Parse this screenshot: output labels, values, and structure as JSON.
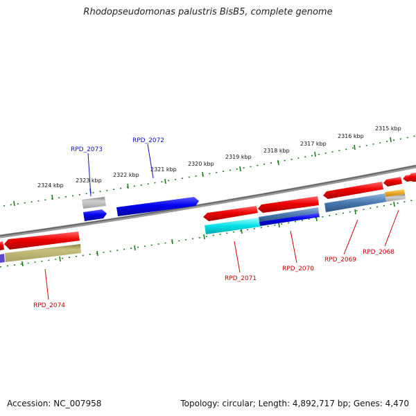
{
  "title": "Rhodopseudomonas palustris BisB5, complete genome",
  "accession_text": "Accession: NC_007958",
  "topology_text": "Topology: circular; Length: 4,892,717 bp; Genes: 4,470",
  "ruler_labels": [
    "2315 kbp",
    "2316 kbp",
    "2317 kbp",
    "2318 kbp",
    "2319 kbp",
    "2320 kbp",
    "2321 kbp",
    "2322 kbp",
    "2323 kbp",
    "2324 kbp"
  ],
  "upper_gene_labels": [
    "RPD_2073",
    "RPD_2072"
  ],
  "lower_gene_labels": [
    "RPD_2074",
    "RPD_2071",
    "RPD_2070",
    "RPD_2069",
    "RPD_2068"
  ],
  "colors": {
    "backbone": "#7a7a7a",
    "ruler": "#1a7a1a",
    "label_upper": "#1010c0",
    "label_lower": "#cc0000",
    "red": "#ee0000",
    "blue": "#0000ee",
    "cyan": "#00e0e8",
    "steelblue": "#4878b0",
    "khaki": "#b8b070",
    "gray": "#a8a8a8",
    "orange": "#f0a000"
  }
}
